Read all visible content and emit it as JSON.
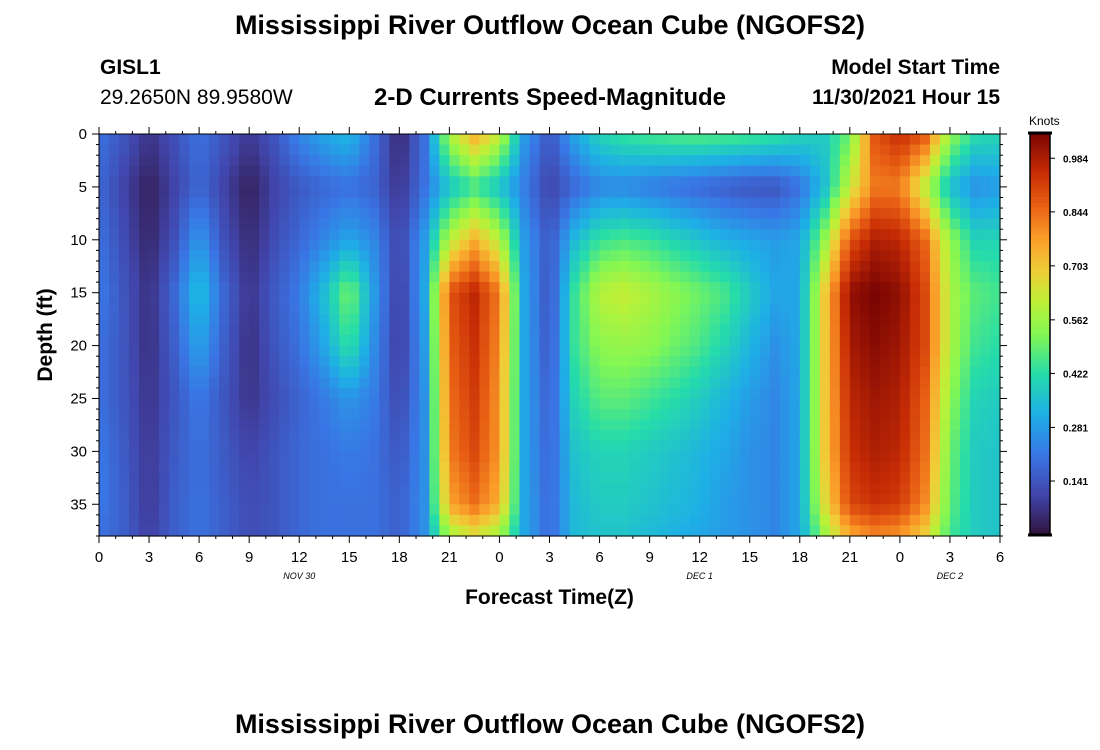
{
  "header": {
    "title": "Mississippi River Outflow Ocean Cube (NGOFS2)",
    "station": "GISL1",
    "coords": "29.2650N  89.9580W",
    "subtitle": "2-D Currents Speed-Magnitude",
    "model_start_label": "Model Start Time",
    "model_start_value": "11/30/2021 Hour 15"
  },
  "footer": {
    "title": "Mississippi River Outflow Ocean Cube (NGOFS2)"
  },
  "chart_data": {
    "type": "heatmap",
    "xlabel": "Forecast Time(Z)",
    "ylabel": "Depth (ft)",
    "x_ticks": [
      "0",
      "3",
      "6",
      "9",
      "12",
      "15",
      "18",
      "21",
      "0",
      "3",
      "6",
      "9",
      "12",
      "15",
      "18",
      "21",
      "0",
      "3",
      "6"
    ],
    "x_range_hours": [
      0,
      54
    ],
    "date_labels": [
      {
        "text": "NOV 30",
        "hour": 12
      },
      {
        "text": "DEC 1",
        "hour": 36
      },
      {
        "text": "DEC 2",
        "hour": 51
      }
    ],
    "y_ticks": [
      0,
      5,
      10,
      15,
      20,
      25,
      30,
      35
    ],
    "y_range_ft": [
      0,
      38
    ],
    "y_inverted": true,
    "colorbar": {
      "unit": "Knots",
      "min": 0.0,
      "max": 1.05,
      "tick_values": [
        0.984,
        0.844,
        0.703,
        0.562,
        0.422,
        0.281,
        0.141
      ],
      "tick_labels": [
        "0.984",
        "0.844",
        "0.703",
        "0.562",
        "0.422",
        "0.281",
        "0.141"
      ]
    },
    "time_hours": [
      0,
      1.5,
      3,
      4.5,
      6,
      7.5,
      9,
      10.5,
      12,
      13.5,
      15,
      16.5,
      18,
      19.5,
      21,
      22.5,
      24,
      25.5,
      27,
      28.5,
      30,
      31.5,
      33,
      34.5,
      36,
      37.5,
      39,
      40.5,
      42,
      43.5,
      45,
      46.5,
      48,
      49.5,
      51,
      52.5,
      54
    ],
    "depths_ft": [
      0,
      5,
      10,
      15,
      20,
      25,
      30,
      35,
      38
    ],
    "speed_knots": [
      [
        0.2,
        0.14,
        0.07,
        0.13,
        0.2,
        0.14,
        0.08,
        0.14,
        0.24,
        0.3,
        0.34,
        0.2,
        0.04,
        0.2,
        0.58,
        0.75,
        0.62,
        0.28,
        0.14,
        0.3,
        0.4,
        0.44,
        0.46,
        0.47,
        0.48,
        0.47,
        0.46,
        0.44,
        0.4,
        0.38,
        0.5,
        0.88,
        0.95,
        0.88,
        0.55,
        0.42,
        0.4
      ],
      [
        0.18,
        0.1,
        0.03,
        0.1,
        0.18,
        0.1,
        0.03,
        0.1,
        0.15,
        0.18,
        0.2,
        0.17,
        0.07,
        0.2,
        0.36,
        0.44,
        0.36,
        0.22,
        0.1,
        0.18,
        0.24,
        0.24,
        0.22,
        0.2,
        0.18,
        0.16,
        0.14,
        0.14,
        0.2,
        0.35,
        0.62,
        0.82,
        0.82,
        0.6,
        0.35,
        0.26,
        0.28
      ],
      [
        0.2,
        0.12,
        0.04,
        0.13,
        0.28,
        0.13,
        0.05,
        0.12,
        0.18,
        0.24,
        0.3,
        0.24,
        0.1,
        0.28,
        0.6,
        0.74,
        0.6,
        0.28,
        0.14,
        0.34,
        0.44,
        0.46,
        0.44,
        0.4,
        0.36,
        0.32,
        0.3,
        0.28,
        0.3,
        0.55,
        0.88,
        0.98,
        0.96,
        0.85,
        0.55,
        0.4,
        0.4
      ],
      [
        0.22,
        0.14,
        0.06,
        0.18,
        0.36,
        0.18,
        0.07,
        0.15,
        0.22,
        0.35,
        0.52,
        0.28,
        0.08,
        0.3,
        0.88,
        0.96,
        0.82,
        0.3,
        0.13,
        0.44,
        0.6,
        0.62,
        0.58,
        0.54,
        0.5,
        0.46,
        0.38,
        0.3,
        0.3,
        0.7,
        1.02,
        1.05,
        1.02,
        0.9,
        0.58,
        0.48,
        0.45
      ],
      [
        0.2,
        0.14,
        0.06,
        0.16,
        0.3,
        0.16,
        0.06,
        0.14,
        0.2,
        0.3,
        0.44,
        0.25,
        0.08,
        0.28,
        0.86,
        0.94,
        0.8,
        0.3,
        0.14,
        0.44,
        0.54,
        0.55,
        0.54,
        0.5,
        0.46,
        0.4,
        0.33,
        0.26,
        0.3,
        0.7,
        0.99,
        1.03,
        1.0,
        0.9,
        0.58,
        0.45,
        0.42
      ],
      [
        0.2,
        0.14,
        0.07,
        0.14,
        0.22,
        0.14,
        0.07,
        0.12,
        0.17,
        0.22,
        0.27,
        0.22,
        0.11,
        0.26,
        0.84,
        0.92,
        0.78,
        0.3,
        0.16,
        0.4,
        0.48,
        0.48,
        0.45,
        0.42,
        0.38,
        0.33,
        0.28,
        0.24,
        0.3,
        0.7,
        0.96,
        1.0,
        0.98,
        0.86,
        0.54,
        0.4,
        0.38
      ],
      [
        0.22,
        0.15,
        0.08,
        0.15,
        0.2,
        0.15,
        0.1,
        0.14,
        0.18,
        0.2,
        0.22,
        0.2,
        0.14,
        0.26,
        0.82,
        0.9,
        0.78,
        0.3,
        0.17,
        0.36,
        0.4,
        0.4,
        0.38,
        0.36,
        0.33,
        0.3,
        0.26,
        0.24,
        0.3,
        0.7,
        0.94,
        0.98,
        0.96,
        0.84,
        0.5,
        0.38,
        0.36
      ],
      [
        0.22,
        0.16,
        0.08,
        0.16,
        0.2,
        0.16,
        0.12,
        0.14,
        0.18,
        0.2,
        0.2,
        0.2,
        0.16,
        0.26,
        0.76,
        0.84,
        0.74,
        0.3,
        0.18,
        0.34,
        0.38,
        0.38,
        0.36,
        0.34,
        0.32,
        0.28,
        0.26,
        0.24,
        0.3,
        0.66,
        0.9,
        0.94,
        0.92,
        0.8,
        0.48,
        0.38,
        0.36
      ],
      [
        0.2,
        0.16,
        0.09,
        0.16,
        0.2,
        0.16,
        0.12,
        0.14,
        0.18,
        0.2,
        0.2,
        0.2,
        0.16,
        0.26,
        0.56,
        0.64,
        0.56,
        0.3,
        0.18,
        0.34,
        0.36,
        0.36,
        0.34,
        0.32,
        0.3,
        0.28,
        0.26,
        0.24,
        0.3,
        0.55,
        0.75,
        0.8,
        0.78,
        0.68,
        0.45,
        0.38,
        0.36
      ]
    ]
  }
}
